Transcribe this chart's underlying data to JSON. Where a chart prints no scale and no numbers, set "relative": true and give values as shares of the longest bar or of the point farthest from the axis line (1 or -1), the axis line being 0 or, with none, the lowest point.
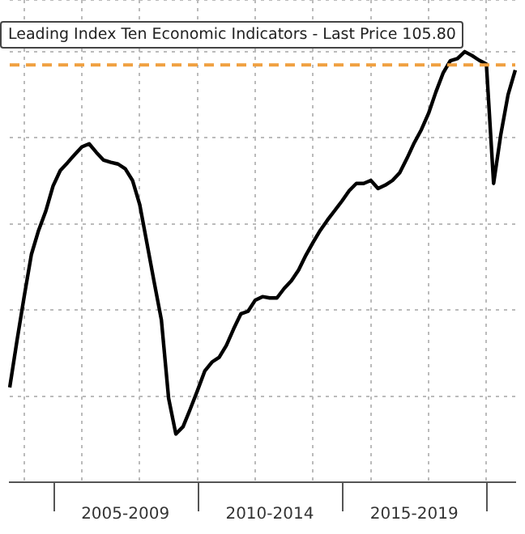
{
  "chart_data": {
    "type": "line",
    "title": "Leading Index Ten Economic Indicators - Last Price 105.80",
    "relative": true,
    "grid": true,
    "legend": false,
    "marker": "none",
    "line_style": "solid",
    "categories": [
      null,
      null,
      null,
      null,
      null,
      null,
      null,
      null,
      null,
      null,
      null,
      null,
      null,
      null,
      null,
      null,
      "2005-2009",
      null,
      null,
      null,
      null,
      null,
      null,
      null,
      null,
      null,
      null,
      null,
      null,
      null,
      null,
      null,
      null,
      null,
      null,
      null,
      "2010-2014",
      null,
      null,
      null,
      null,
      null,
      null,
      null,
      null,
      null,
      null,
      null,
      null,
      null,
      null,
      null,
      null,
      null,
      null,
      null,
      "2015-2019",
      null,
      null,
      null,
      null,
      null,
      null,
      null,
      null,
      null,
      null,
      null,
      null,
      null,
      null
    ],
    "ref_lines": [
      {
        "axis": "y",
        "value": 0.969,
        "color": "#f0a040",
        "line_style": "dashed"
      }
    ],
    "series": [
      {
        "color": "#000000",
        "values": [
          0.22,
          0.328,
          0.431,
          0.529,
          0.585,
          0.63,
          0.688,
          0.724,
          0.742,
          0.761,
          0.779,
          0.786,
          0.766,
          0.748,
          0.743,
          0.739,
          0.728,
          0.701,
          0.645,
          0.555,
          0.465,
          0.377,
          0.195,
          0.112,
          0.129,
          0.17,
          0.213,
          0.258,
          0.279,
          0.29,
          0.318,
          0.356,
          0.391,
          0.397,
          0.423,
          0.431,
          0.428,
          0.428,
          0.45,
          0.468,
          0.493,
          0.527,
          0.557,
          0.585,
          0.609,
          0.631,
          0.653,
          0.677,
          0.694,
          0.694,
          0.701,
          0.682,
          0.69,
          0.701,
          0.719,
          0.752,
          0.788,
          0.819,
          0.857,
          0.906,
          0.95,
          0.979,
          0.984,
          1,
          0.991,
          0.98,
          0.971,
          0.694,
          0.808,
          0.9,
          0.957
        ]
      }
    ]
  }
}
